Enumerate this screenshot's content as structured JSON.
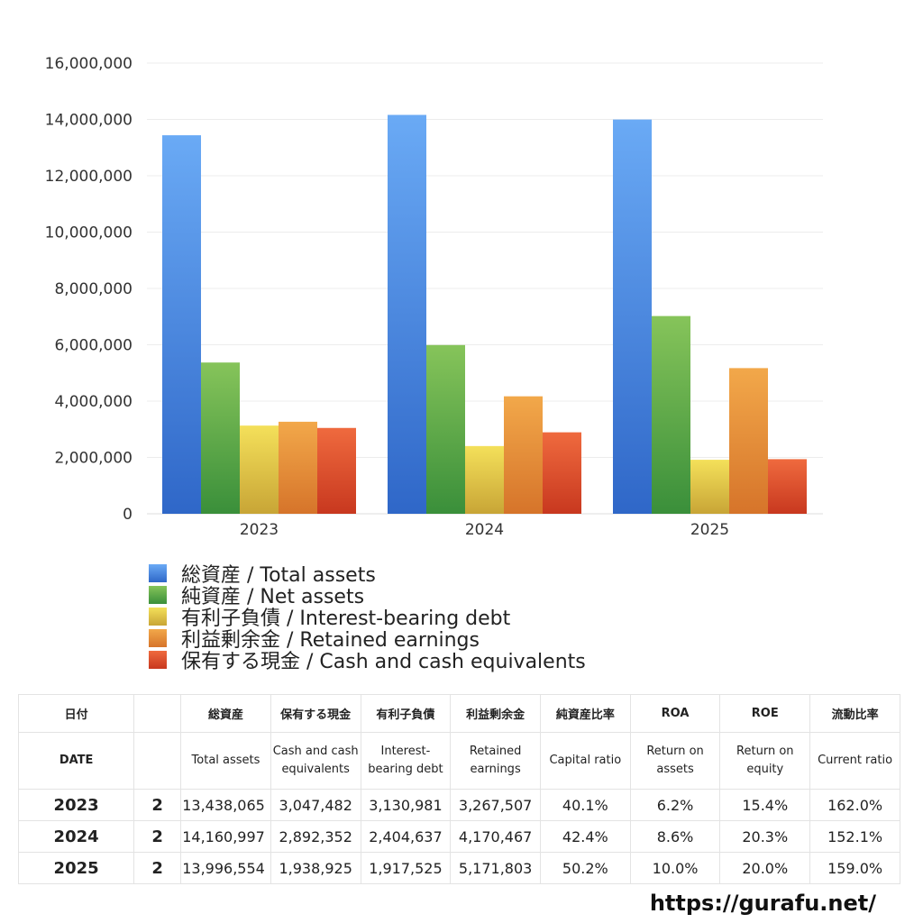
{
  "chart_data": {
    "type": "bar",
    "categories": [
      "2023",
      "2024",
      "2025"
    ],
    "ylim": [
      0,
      16000000
    ],
    "yticks": [
      "0",
      "2,000,000",
      "4,000,000",
      "6,000,000",
      "8,000,000",
      "10,000,000",
      "12,000,000",
      "14,000,000",
      "16,000,000"
    ],
    "grid": true,
    "legend_position": "bottom",
    "series": [
      {
        "name": "総資産 / Total assets",
        "color_top": "#6aaaf5",
        "color_bottom": "#2f67c8",
        "values": [
          13438065,
          14160997,
          13996554
        ]
      },
      {
        "name": "純資産 / Net assets",
        "color_top": "#86c45a",
        "color_bottom": "#3a8f3a",
        "values": [
          5370000,
          5990000,
          7020000
        ]
      },
      {
        "name": "有利子負債 / Interest-bearing debt",
        "color_top": "#f4e05a",
        "color_bottom": "#c8a536",
        "values": [
          3130981,
          2404637,
          1917525
        ]
      },
      {
        "name": "利益剰余金 / Retained earnings",
        "color_top": "#f2a84a",
        "color_bottom": "#d6742a",
        "values": [
          3267507,
          4170467,
          5171803
        ]
      },
      {
        "name": "保有する現金 /  Cash and cash equivalents",
        "color_top": "#ef6a3e",
        "color_bottom": "#c8381f",
        "values": [
          3047482,
          2892352,
          1938925
        ]
      }
    ]
  },
  "table": {
    "header_jp": [
      "日付",
      "",
      "総資産",
      "保有する現金",
      "有利子負債",
      "利益剰余金",
      "純資産比率",
      "ROA",
      "ROE",
      "流動比率"
    ],
    "header_en": [
      "DATE",
      "",
      "Total assets",
      "Cash and cash equivalents",
      "Interest-bearing debt",
      "Retained earnings",
      "Capital ratio",
      "Return on assets",
      "Return on equity",
      "Current ratio"
    ],
    "rows": [
      [
        "2023",
        "2",
        "13,438,065",
        "3,047,482",
        "3,130,981",
        "3,267,507",
        "40.1%",
        "6.2%",
        "15.4%",
        "162.0%"
      ],
      [
        "2024",
        "2",
        "14,160,997",
        "2,892,352",
        "2,404,637",
        "4,170,467",
        "42.4%",
        "8.6%",
        "20.3%",
        "152.1%"
      ],
      [
        "2025",
        "2",
        "13,996,554",
        "1,938,925",
        "1,917,525",
        "5,171,803",
        "50.2%",
        "10.0%",
        "20.0%",
        "159.0%"
      ]
    ]
  },
  "site_url": "https://gurafu.net/"
}
